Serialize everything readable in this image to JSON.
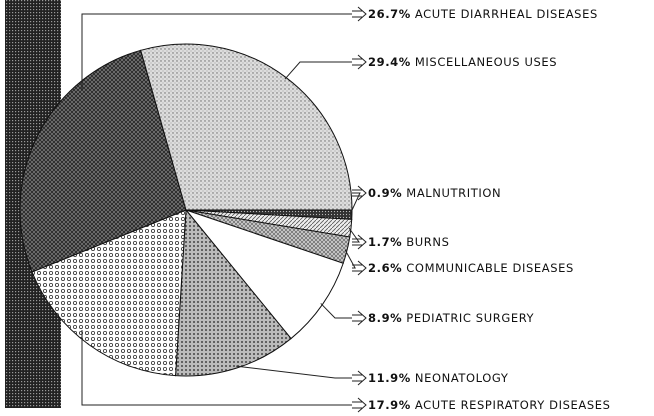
{
  "chart_data": {
    "type": "pie",
    "categories": [
      "ACUTE DIARRHEAL DISEASES",
      "MISCELLANEOUS USES",
      "MALNUTRITION",
      "BURNS",
      "COMMUNICABLE DISEASES",
      "PEDIATRIC SURGERY",
      "NEONATOLOGY",
      "ACUTE RESPIRATORY DISEASES"
    ],
    "values": [
      26.7,
      29.4,
      0.9,
      1.7,
      2.6,
      8.9,
      11.9,
      17.9
    ],
    "value_labels": [
      "26.7%",
      "29.4%",
      "0.9%",
      "1.7%",
      "2.6%",
      "8.9%",
      "11.9%",
      "17.9%"
    ]
  }
}
